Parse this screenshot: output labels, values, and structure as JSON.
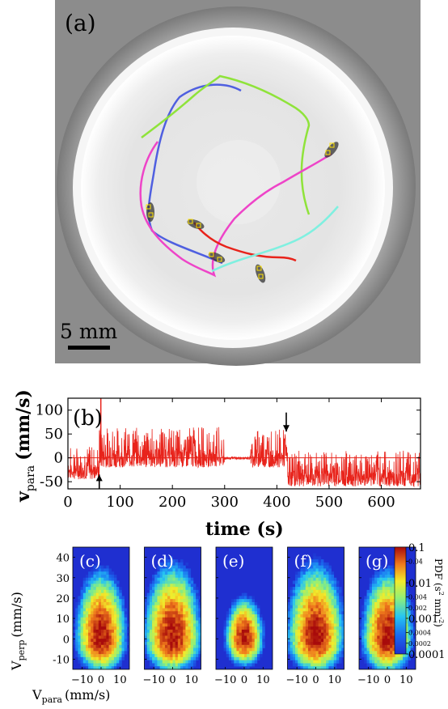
{
  "panel_a": {
    "label": "(a)",
    "scale_bar_text": "5 mm",
    "colors": {
      "blue": "#4f5fe0",
      "green": "#8fe33a",
      "magenta": "#ee44c8",
      "red": "#e8231b",
      "cyan": "#7ff0e0",
      "marker": "#ffe200"
    }
  },
  "chart_data": [
    {
      "type": "line",
      "panel_label": "(b)",
      "xlabel": "time (s)",
      "ylabel_main": "v",
      "ylabel_sub": "para",
      "ylabel_unit": "(mm/s)",
      "xlim": [
        0,
        675
      ],
      "ylim": [
        -65,
        125
      ],
      "xticks": [
        0,
        100,
        200,
        300,
        400,
        500,
        600
      ],
      "yticks": [
        -50,
        0,
        50,
        100
      ],
      "series_color": "#e8231b",
      "segments": [
        {
          "t": [
            0,
            60
          ],
          "amp_low": -45,
          "amp_high": 25
        },
        {
          "t": [
            60,
            300
          ],
          "amp_low": -20,
          "amp_high": 65
        },
        {
          "t": [
            300,
            350
          ],
          "amp_low": -3,
          "amp_high": 3
        },
        {
          "t": [
            350,
            420
          ],
          "amp_low": -20,
          "amp_high": 60
        },
        {
          "t": [
            420,
            675
          ],
          "amp_low": -60,
          "amp_high": 15
        }
      ],
      "spike": {
        "t": 63,
        "v": 125
      },
      "annotations": [
        {
          "type": "arrow-up",
          "t": 60,
          "v_tail": -65,
          "v_head": -35
        },
        {
          "type": "arrow-down",
          "t": 418,
          "v_tail": 95,
          "v_head": 55
        }
      ]
    },
    {
      "type": "heatmap",
      "panels": [
        "(c)",
        "(d)",
        "(e)",
        "(f)",
        "(g)"
      ],
      "xlabel_main": "V",
      "xlabel_sub": "para",
      "xlabel_unit": "(mm/s)",
      "ylabel_main": "V",
      "ylabel_sub": "perp",
      "ylabel_unit": "(mm/s)",
      "xlim": [
        -15,
        15
      ],
      "ylim": [
        -15,
        45
      ],
      "xtick_labels": [
        "−10",
        "0",
        "10"
      ],
      "xticks": [
        -10,
        0,
        10
      ],
      "yticks": [
        -10,
        0,
        10,
        20,
        30,
        40
      ],
      "colorbar": {
        "title": "PDF (s",
        "title_sup1": "2",
        "title_mid": " mm",
        "title_sup2": "-2",
        "title_end": ")",
        "scale": "log",
        "range": [
          0.0001,
          0.1
        ],
        "tick_labels": [
          "0.1",
          "0.04",
          "0.01",
          "0.004",
          "0.002",
          "0.001",
          "0.0004",
          "0.0002",
          "0.0001"
        ],
        "tick_values": [
          0.1,
          0.04,
          0.01,
          0.004,
          0.002,
          0.001,
          0.0004,
          0.0002,
          0.0001
        ]
      },
      "spread": [
        {
          "sx": 4.0,
          "sy_up": 10,
          "sy_down": 5
        },
        {
          "sx": 4.5,
          "sy_up": 11,
          "sy_down": 5
        },
        {
          "sx": 3.0,
          "sy_up": 6,
          "sy_down": 4
        },
        {
          "sx": 4.5,
          "sy_up": 11,
          "sy_down": 5
        },
        {
          "sx": 4.0,
          "sy_up": 10,
          "sy_down": 5
        }
      ]
    }
  ]
}
